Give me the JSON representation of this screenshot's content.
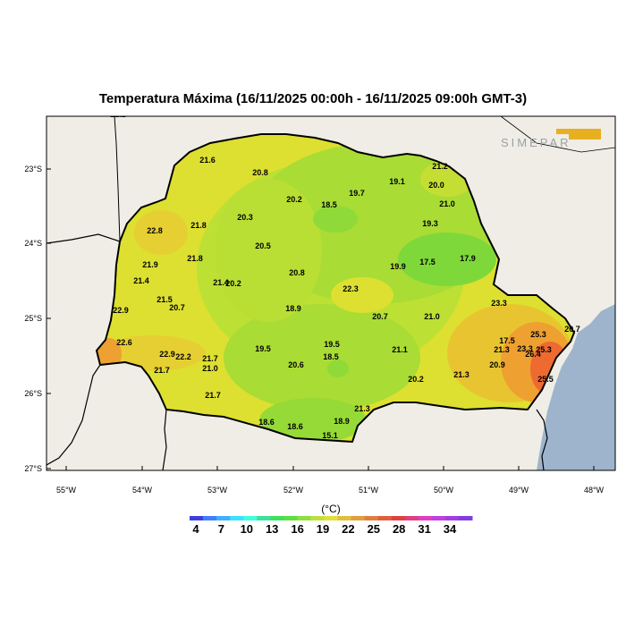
{
  "title": "Temperatura Máxima (16/11/2025 00:00h - 16/11/2025 09:00h GMT-3)",
  "logo_text": "SIMEPAR",
  "lat_ticks": [
    "23°S",
    "24°S",
    "25°S",
    "26°S",
    "27°S"
  ],
  "lon_ticks": [
    "55°W",
    "54°W",
    "53°W",
    "52°W",
    "51°W",
    "50°W",
    "49°W",
    "48°W"
  ],
  "colorbar": {
    "unit": "(°C)",
    "labels": [
      "4",
      "7",
      "10",
      "13",
      "16",
      "19",
      "22",
      "25",
      "28",
      "31",
      "34"
    ],
    "colors": [
      "#3f3fdf",
      "#3f7fff",
      "#3fafff",
      "#3fdfff",
      "#3fffdf",
      "#3fdf9f",
      "#3fdf5f",
      "#5fdf3f",
      "#8fdf3f",
      "#bfdf3f",
      "#dfdf3f",
      "#dfbf3f",
      "#df9f3f",
      "#df7f3f",
      "#df5f3f",
      "#df3f3f",
      "#df3f7f",
      "#df3fbf",
      "#bf3fdf",
      "#9f3fdf",
      "#7f3fdf"
    ]
  },
  "colors": {
    "land_outside": "#efede6",
    "ocean": "#9eb4cc",
    "warm_yellow": "#dde030",
    "green": "#a9dc35",
    "dark_green": "#7fd83a",
    "orange": "#eeb030",
    "red_orange": "#ee6030"
  },
  "station_values": [
    {
      "v": "22.2"
    },
    {
      "v": "21.3"
    },
    {
      "v": "21.6"
    },
    {
      "v": "20.8"
    },
    {
      "v": "21.2"
    },
    {
      "v": "19.1"
    },
    {
      "v": "20.0"
    },
    {
      "v": "20.2"
    },
    {
      "v": "19.7"
    },
    {
      "v": "18.5"
    },
    {
      "v": "21.0"
    },
    {
      "v": "22.8"
    },
    {
      "v": "21.8"
    },
    {
      "v": "20.3"
    },
    {
      "v": "19.3"
    },
    {
      "v": "20.5"
    },
    {
      "v": "21.9"
    },
    {
      "v": "21.8"
    },
    {
      "v": "17.5"
    },
    {
      "v": "17.9"
    },
    {
      "v": "19.9"
    },
    {
      "v": "21.4"
    },
    {
      "v": "20.8"
    },
    {
      "v": "21.4"
    },
    {
      "v": "20.2"
    },
    {
      "v": "22.3"
    },
    {
      "v": "21.5"
    },
    {
      "v": "20.7"
    },
    {
      "v": "23.3"
    },
    {
      "v": "22.9"
    },
    {
      "v": "18.9"
    },
    {
      "v": "20.7"
    },
    {
      "v": "21.0"
    },
    {
      "v": "20.7"
    },
    {
      "v": "22.6"
    },
    {
      "v": "17.5"
    },
    {
      "v": "25.3"
    },
    {
      "v": "19.5"
    },
    {
      "v": "19.5"
    },
    {
      "v": "21.1"
    },
    {
      "v": "21.3"
    },
    {
      "v": "23.3"
    },
    {
      "v": "25.3"
    },
    {
      "v": "22.9"
    },
    {
      "v": "22.2"
    },
    {
      "v": "21.7"
    },
    {
      "v": "18.5"
    },
    {
      "v": "26.4"
    },
    {
      "v": "21.7"
    },
    {
      "v": "21.0"
    },
    {
      "v": "20.6"
    },
    {
      "v": "20.9"
    },
    {
      "v": "20.2"
    },
    {
      "v": "21.3"
    },
    {
      "v": "25.5"
    },
    {
      "v": "21.7"
    },
    {
      "v": "21.3"
    },
    {
      "v": "18.6"
    },
    {
      "v": "18.6"
    },
    {
      "v": "18.9"
    },
    {
      "v": "15.1"
    }
  ]
}
